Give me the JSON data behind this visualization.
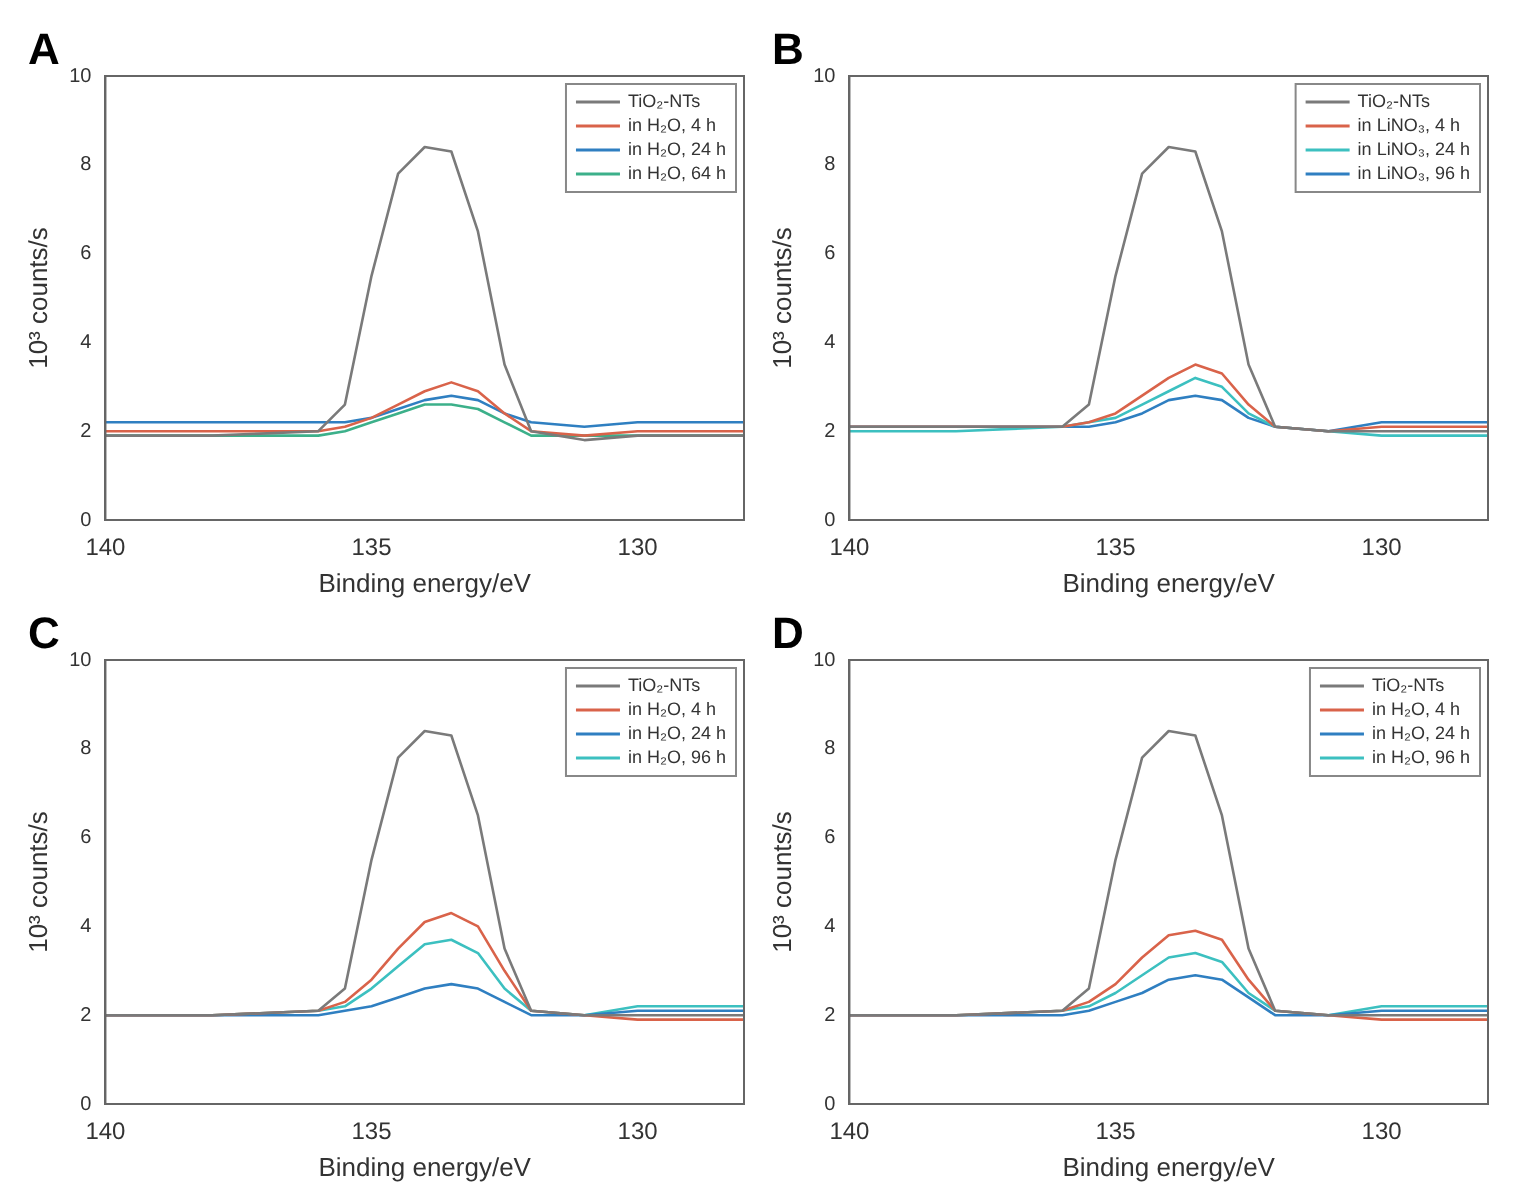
{
  "chart_data": [
    {
      "type": "line",
      "title": "A",
      "xlabel": "Binding energy/eV",
      "ylabel": "10³ counts/s",
      "x": [
        140,
        138,
        136,
        135.5,
        135,
        134.5,
        134,
        133.5,
        133,
        132.5,
        132,
        131,
        130,
        128
      ],
      "xlim": [
        140,
        128
      ],
      "xticks": [
        140,
        135,
        130
      ],
      "ylim": [
        0,
        10
      ],
      "yticks": [
        0,
        2,
        4,
        6,
        8,
        10
      ],
      "grid": false,
      "legend": "top right",
      "marker": "none",
      "line_style": "solid",
      "series": [
        {
          "name": "TiO₂-NTs",
          "color": "#7a7a7a",
          "values": [
            1.9,
            1.9,
            2.0,
            2.6,
            5.5,
            7.8,
            8.4,
            8.3,
            6.5,
            3.5,
            2.0,
            1.8,
            1.9,
            1.9
          ]
        },
        {
          "name": "in H₂O, 4 h",
          "color": "#d9634a",
          "values": [
            2.0,
            2.0,
            2.0,
            2.1,
            2.3,
            2.6,
            2.9,
            3.1,
            2.9,
            2.4,
            2.0,
            1.9,
            2.0,
            2.0
          ]
        },
        {
          "name": "in H₂O, 24 h",
          "color": "#2f7fc1",
          "values": [
            2.2,
            2.2,
            2.2,
            2.2,
            2.3,
            2.5,
            2.7,
            2.8,
            2.7,
            2.4,
            2.2,
            2.1,
            2.2,
            2.2
          ]
        },
        {
          "name": "in H₂O, 64 h",
          "color": "#3cb08a",
          "values": [
            1.9,
            1.9,
            1.9,
            2.0,
            2.2,
            2.4,
            2.6,
            2.6,
            2.5,
            2.2,
            1.9,
            1.9,
            1.9,
            1.9
          ]
        }
      ]
    },
    {
      "type": "line",
      "title": "B",
      "xlabel": "Binding energy/eV",
      "ylabel": "10³ counts/s",
      "x": [
        140,
        138,
        136,
        135.5,
        135,
        134.5,
        134,
        133.5,
        133,
        132.5,
        132,
        131,
        130,
        128
      ],
      "xlim": [
        140,
        128
      ],
      "xticks": [
        140,
        135,
        130
      ],
      "ylim": [
        0,
        10
      ],
      "yticks": [
        0,
        2,
        4,
        6,
        8,
        10
      ],
      "grid": false,
      "legend": "top right",
      "marker": "none",
      "line_style": "solid",
      "series": [
        {
          "name": "TiO₂-NTs",
          "color": "#7a7a7a",
          "values": [
            2.1,
            2.1,
            2.1,
            2.6,
            5.5,
            7.8,
            8.4,
            8.3,
            6.5,
            3.5,
            2.1,
            2.0,
            2.0,
            2.0
          ]
        },
        {
          "name": "in LiNO₃, 4 h",
          "color": "#d9634a",
          "values": [
            2.1,
            2.1,
            2.1,
            2.2,
            2.4,
            2.8,
            3.2,
            3.5,
            3.3,
            2.6,
            2.1,
            2.0,
            2.1,
            2.1
          ]
        },
        {
          "name": "in LiNO₃, 24 h",
          "color": "#3cc0c0",
          "values": [
            2.0,
            2.0,
            2.1,
            2.2,
            2.3,
            2.6,
            2.9,
            3.2,
            3.0,
            2.4,
            2.1,
            2.0,
            1.9,
            1.9
          ]
        },
        {
          "name": "in LiNO₃, 96 h",
          "color": "#2f7fc1",
          "values": [
            2.1,
            2.1,
            2.1,
            2.1,
            2.2,
            2.4,
            2.7,
            2.8,
            2.7,
            2.3,
            2.1,
            2.0,
            2.2,
            2.2
          ]
        }
      ]
    },
    {
      "type": "line",
      "title": "C",
      "xlabel": "Binding energy/eV",
      "ylabel": "10³ counts/s",
      "x": [
        140,
        138,
        136,
        135.5,
        135,
        134.5,
        134,
        133.5,
        133,
        132.5,
        132,
        131,
        130,
        128
      ],
      "xlim": [
        140,
        128
      ],
      "xticks": [
        140,
        135,
        130
      ],
      "ylim": [
        0,
        10
      ],
      "yticks": [
        0,
        2,
        4,
        6,
        8,
        10
      ],
      "grid": false,
      "legend": "top right",
      "marker": "none",
      "line_style": "solid",
      "series": [
        {
          "name": "TiO₂-NTs",
          "color": "#7a7a7a",
          "values": [
            2.0,
            2.0,
            2.1,
            2.6,
            5.5,
            7.8,
            8.4,
            8.3,
            6.5,
            3.5,
            2.1,
            2.0,
            2.0,
            2.0
          ]
        },
        {
          "name": "in H₂O, 4 h",
          "color": "#d9634a",
          "values": [
            2.0,
            2.0,
            2.1,
            2.3,
            2.8,
            3.5,
            4.1,
            4.3,
            4.0,
            3.0,
            2.1,
            2.0,
            1.9,
            1.9
          ]
        },
        {
          "name": "in H₂O, 24 h",
          "color": "#2f7fc1",
          "values": [
            2.0,
            2.0,
            2.0,
            2.1,
            2.2,
            2.4,
            2.6,
            2.7,
            2.6,
            2.3,
            2.0,
            2.0,
            2.1,
            2.1
          ]
        },
        {
          "name": "in H₂O, 96 h",
          "color": "#3cc0c0",
          "values": [
            2.0,
            2.0,
            2.1,
            2.2,
            2.6,
            3.1,
            3.6,
            3.7,
            3.4,
            2.6,
            2.1,
            2.0,
            2.2,
            2.2
          ]
        }
      ]
    },
    {
      "type": "line",
      "title": "D",
      "xlabel": "Binding energy/eV",
      "ylabel": "10³ counts/s",
      "x": [
        140,
        138,
        136,
        135.5,
        135,
        134.5,
        134,
        133.5,
        133,
        132.5,
        132,
        131,
        130,
        128
      ],
      "xlim": [
        140,
        128
      ],
      "xticks": [
        140,
        135,
        130
      ],
      "ylim": [
        0,
        10
      ],
      "yticks": [
        0,
        2,
        4,
        6,
        8,
        10
      ],
      "grid": false,
      "legend": "top right",
      "marker": "none",
      "line_style": "solid",
      "series": [
        {
          "name": "TiO₂-NTs",
          "color": "#7a7a7a",
          "values": [
            2.0,
            2.0,
            2.1,
            2.6,
            5.5,
            7.8,
            8.4,
            8.3,
            6.5,
            3.5,
            2.1,
            2.0,
            2.0,
            2.0
          ]
        },
        {
          "name": "in H₂O, 4 h",
          "color": "#d9634a",
          "values": [
            2.0,
            2.0,
            2.1,
            2.3,
            2.7,
            3.3,
            3.8,
            3.9,
            3.7,
            2.8,
            2.1,
            2.0,
            1.9,
            1.9
          ]
        },
        {
          "name": "in H₂O, 24 h",
          "color": "#2f7fc1",
          "values": [
            2.0,
            2.0,
            2.0,
            2.1,
            2.3,
            2.5,
            2.8,
            2.9,
            2.8,
            2.4,
            2.0,
            2.0,
            2.1,
            2.1
          ]
        },
        {
          "name": "in H₂O, 96 h",
          "color": "#3cc0c0",
          "values": [
            2.0,
            2.0,
            2.1,
            2.2,
            2.5,
            2.9,
            3.3,
            3.4,
            3.2,
            2.5,
            2.1,
            2.0,
            2.2,
            2.2
          ]
        }
      ]
    }
  ]
}
